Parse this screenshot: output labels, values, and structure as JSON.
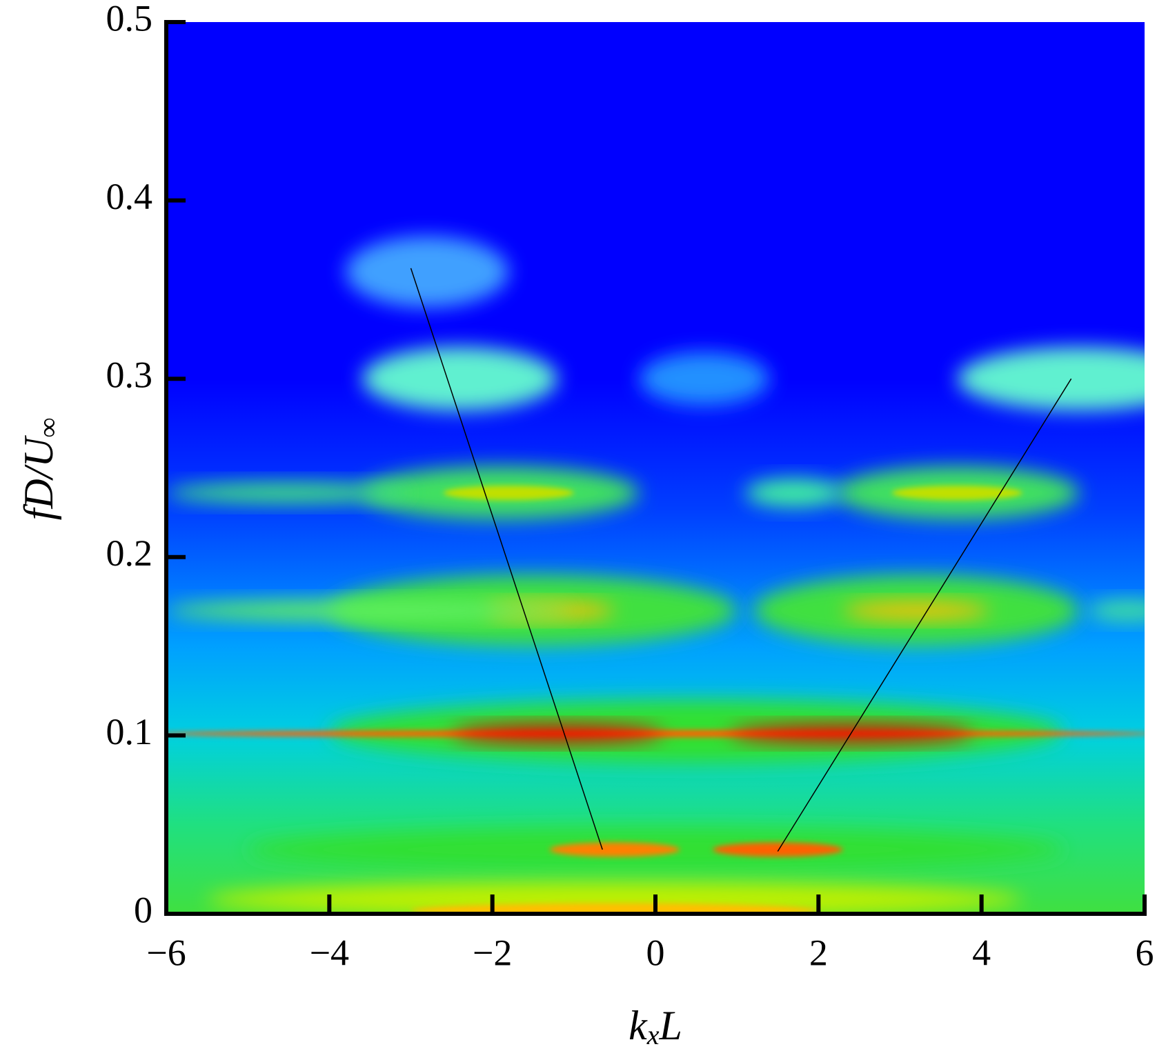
{
  "chart_data": {
    "type": "heatmap",
    "xlabel": [
      "k",
      "x",
      "L"
    ],
    "ylabel": [
      "fD/U",
      "∞"
    ],
    "xlim": [
      -6,
      6
    ],
    "ylim": [
      0,
      0.5
    ],
    "xticks": [
      {
        "value": -6,
        "label": "−6"
      },
      {
        "value": -4,
        "label": "−4"
      },
      {
        "value": -2,
        "label": "−2"
      },
      0,
      2,
      4,
      6
    ],
    "yticks": [
      0,
      0.1,
      0.2,
      0.3,
      0.4,
      0.5
    ],
    "spots": {
      "x": [
        0.5,
        0,
        -1.2,
        2.4,
        -1.5,
        3.2,
        -1.3,
        3.2,
        -3.5,
        5.8,
        -1.9,
        -1.8,
        3.7,
        3.7,
        1.7,
        -4.5,
        -2.4,
        5.2,
        0.6,
        -2.8,
        0,
        -0.5,
        1.5,
        -0.5,
        -0.5
      ],
      "y": [
        0.102,
        0.101,
        0.101,
        0.101,
        0.17,
        0.17,
        0.17,
        0.17,
        0.17,
        0.17,
        0.236,
        0.236,
        0.236,
        0.236,
        0.236,
        0.236,
        0.3,
        0.3,
        0.3,
        0.36,
        0.036,
        0.036,
        0.036,
        0.008,
        0.002
      ],
      "width": [
        4.5,
        6.2,
        1.3,
        1.5,
        2.5,
        2,
        0.8,
        0.9,
        2.5,
        0.5,
        1.7,
        0.8,
        1.5,
        0.8,
        0.6,
        1.5,
        1.2,
        1.5,
        0.8,
        1,
        5,
        0.8,
        0.8,
        5,
        2.5
      ],
      "height": [
        0.018,
        0.002,
        0.005,
        0.005,
        0.02,
        0.02,
        0.005,
        0.005,
        0.006,
        0.006,
        0.015,
        0.004,
        0.015,
        0.004,
        0.008,
        0.006,
        0.018,
        0.018,
        0.015,
        0.02,
        0.012,
        0.004,
        0.004,
        0.01,
        0.004
      ],
      "color": [
        "#30e030",
        "#ff6000",
        "#e00000",
        "#e00000",
        "#40e040",
        "#40e040",
        "#ffc000",
        "#ffc000",
        "#60f060",
        "#40e0a0",
        "#40e060",
        "#c0e000",
        "#40e060",
        "#c0e000",
        "#40f0a0",
        "#40e080",
        "#60f0d0",
        "#60f0d0",
        "#2090ff",
        "#40a0ff",
        "#30e030",
        "#ff8000",
        "#ff6000",
        "#c0f000",
        "#ffc000"
      ]
    },
    "series": [
      {
        "color": "#000000",
        "x": [
          -3,
          -0.65
        ],
        "values": [
          0.362,
          0.036
        ]
      },
      {
        "color": "#000000",
        "x": [
          1.5,
          5.1
        ],
        "values": [
          0.035,
          0.3
        ]
      }
    ]
  }
}
